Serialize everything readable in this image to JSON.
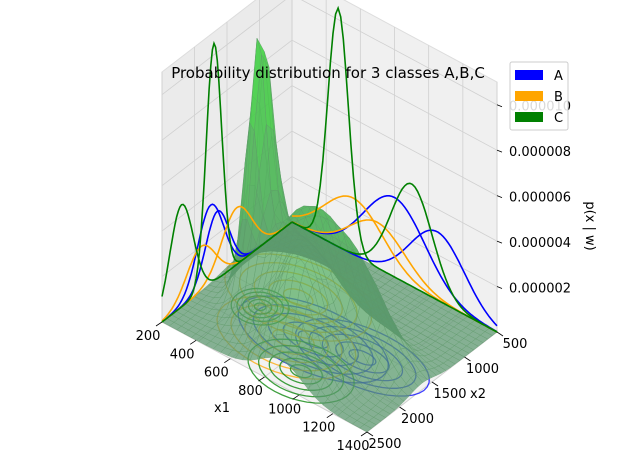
{
  "chart_data": {
    "type": "surface-3d",
    "title": "Probability distribution for 3 classes A,B,C",
    "xlabel": "x1",
    "ylabel": "x2",
    "zlabel": "p(x | w)",
    "xlim": [
      200,
      1400
    ],
    "ylim": [
      500,
      2500
    ],
    "zlim": [
      0,
      1.1e-05
    ],
    "x_ticks": [
      "200",
      "400",
      "600",
      "800",
      "1000",
      "1200",
      "1400"
    ],
    "y_ticks": [
      "500",
      "1000",
      "1500",
      "2000",
      "2500"
    ],
    "z_ticks": [
      "0.000002",
      "0.000004",
      "0.000006",
      "0.000008",
      "0.000010"
    ],
    "grid": true,
    "legend_position": "top-right",
    "series": [
      {
        "name": "A",
        "color": "#0000ff",
        "components": [
          {
            "mean_x1": 800,
            "mean_x2": 1750,
            "sd_x1": 180,
            "sd_x2": 200,
            "peak": 3.5e-06
          },
          {
            "mean_x1": 1050,
            "mean_x2": 1650,
            "sd_x1": 160,
            "sd_x2": 180,
            "peak": 3e-06
          }
        ]
      },
      {
        "name": "B",
        "color": "#ffa500",
        "components": [
          {
            "mean_x1": 560,
            "mean_x2": 1350,
            "sd_x1": 170,
            "sd_x2": 230,
            "peak": 2.5e-06
          },
          {
            "mean_x1": 700,
            "mean_x2": 1900,
            "sd_x1": 160,
            "sd_x2": 220,
            "peak": 2e-06
          }
        ]
      },
      {
        "name": "C",
        "color": "#008000",
        "components": [
          {
            "mean_x1": 470,
            "mean_x2": 1700,
            "sd_x1": 60,
            "sd_x2": 120,
            "peak": 1.05e-05
          },
          {
            "mean_x1": 900,
            "mean_x2": 2200,
            "sd_x1": 120,
            "sd_x2": 180,
            "peak": 4.5e-06
          }
        ]
      }
    ]
  }
}
